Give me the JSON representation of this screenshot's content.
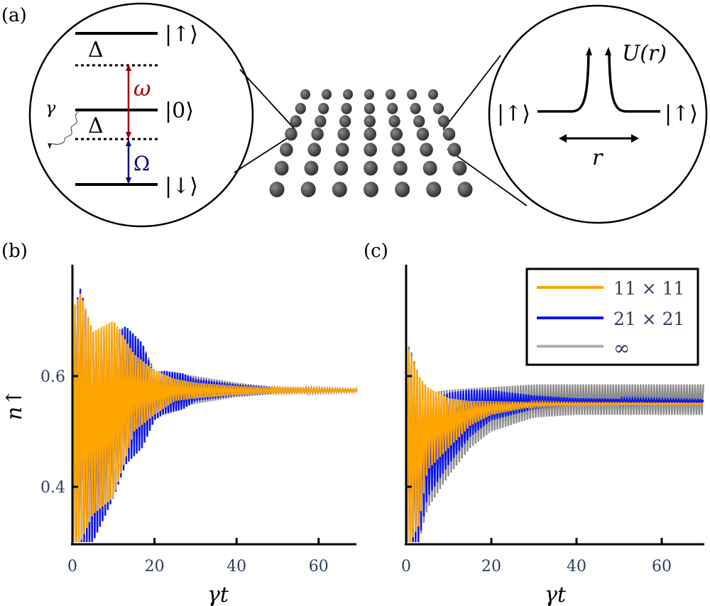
{
  "panel_labels": {
    "a": "(a)",
    "b": "(b)",
    "c": "(c)"
  },
  "diagram": {
    "left_inset": {
      "state_up": "|↑⟩",
      "state_zero": "|0⟩",
      "state_down": "|↓⟩",
      "detuning_upper": "Δ",
      "detuning_lower": "Δ",
      "omega_small": "ω",
      "omega_capital": "Ω",
      "decay": "γ",
      "colors": {
        "omega_small": "#a00000",
        "omega_capital": "#0a0a80"
      }
    },
    "lattice": {
      "rows": 7,
      "cols": 7
    },
    "right_inset": {
      "state_left": "|↑⟩",
      "state_right": "|↑⟩",
      "potential": "U(r)",
      "distance": "r"
    }
  },
  "legend": {
    "items": [
      "11 × 11",
      "21 × 21",
      "∞"
    ]
  },
  "chart_data": [
    {
      "type": "line",
      "panel": "b",
      "xlabel": "γt",
      "ylabel": "n↑",
      "xlim": [
        0,
        70
      ],
      "ylim": [
        0.3,
        0.8
      ],
      "xticks": [
        "0",
        "20",
        "40",
        "60"
      ],
      "xtick_values": [
        0,
        20,
        40,
        60
      ],
      "yticks": [
        "0.4",
        "0.6"
      ],
      "ytick_values": [
        0.4,
        0.6
      ],
      "series": [
        {
          "name": "∞",
          "color": "#8c8c8c",
          "t": [
            0,
            2,
            5,
            10,
            13,
            17,
            20,
            25,
            30,
            40,
            50,
            70
          ],
          "lower": [
            0.3,
            0.3,
            0.3,
            0.38,
            0.46,
            0.5,
            0.53,
            0.54,
            0.55,
            0.562,
            0.568,
            0.572
          ],
          "upper": [
            0.72,
            0.74,
            0.68,
            0.68,
            0.69,
            0.66,
            0.61,
            0.605,
            0.6,
            0.588,
            0.58,
            0.576
          ]
        },
        {
          "name": "21 × 21",
          "color": "#0a14f0",
          "t": [
            0,
            2,
            5,
            10,
            13,
            17,
            20,
            22,
            27,
            30,
            40,
            50,
            70
          ],
          "lower": [
            0.3,
            0.3,
            0.3,
            0.38,
            0.44,
            0.47,
            0.52,
            0.53,
            0.54,
            0.555,
            0.565,
            0.57,
            0.572
          ],
          "upper": [
            0.71,
            0.76,
            0.66,
            0.67,
            0.69,
            0.66,
            0.6,
            0.61,
            0.605,
            0.595,
            0.585,
            0.578,
            0.576
          ]
        },
        {
          "name": "11 × 11",
          "color": "#ffa500",
          "t": [
            0,
            2,
            5,
            10,
            15,
            20,
            25,
            30,
            40,
            50,
            70
          ],
          "lower": [
            0.3,
            0.3,
            0.35,
            0.38,
            0.5,
            0.53,
            0.555,
            0.56,
            0.566,
            0.57,
            0.572
          ],
          "upper": [
            0.72,
            0.75,
            0.68,
            0.7,
            0.64,
            0.61,
            0.595,
            0.588,
            0.582,
            0.578,
            0.576
          ]
        }
      ]
    },
    {
      "type": "line",
      "panel": "c",
      "xlabel": "γt",
      "ylabel": "",
      "xlim": [
        0,
        70
      ],
      "ylim": [
        0.3,
        0.8
      ],
      "xticks": [
        "0",
        "20",
        "40",
        "60"
      ],
      "xtick_values": [
        0,
        20,
        40,
        60
      ],
      "yticks": [],
      "ytick_values": [
        0.4,
        0.6
      ],
      "legend_position": "top-right",
      "series": [
        {
          "name": "∞",
          "color": "#8c8c8c",
          "t": [
            0,
            1,
            3,
            5,
            10,
            15,
            20,
            30,
            40,
            70
          ],
          "lower": [
            0.3,
            0.3,
            0.3,
            0.36,
            0.42,
            0.47,
            0.5,
            0.525,
            0.53,
            0.53
          ],
          "upper": [
            0.66,
            0.65,
            0.6,
            0.57,
            0.575,
            0.578,
            0.58,
            0.585,
            0.585,
            0.585
          ]
        },
        {
          "name": "21 × 21",
          "color": "#0a14f0",
          "t": [
            0,
            1,
            3,
            5,
            10,
            15,
            20,
            30,
            40,
            70
          ],
          "lower": [
            0.3,
            0.3,
            0.3,
            0.38,
            0.44,
            0.49,
            0.52,
            0.54,
            0.548,
            0.552
          ],
          "upper": [
            0.63,
            0.62,
            0.58,
            0.55,
            0.57,
            0.575,
            0.575,
            0.565,
            0.56,
            0.557
          ]
        },
        {
          "name": "11 × 11",
          "color": "#ffa500",
          "t": [
            0,
            1,
            3,
            5,
            10,
            15,
            20,
            30,
            40,
            70
          ],
          "lower": [
            0.3,
            0.3,
            0.33,
            0.43,
            0.47,
            0.51,
            0.53,
            0.545,
            0.548,
            0.549
          ],
          "upper": [
            0.66,
            0.64,
            0.6,
            0.58,
            0.56,
            0.555,
            0.555,
            0.553,
            0.552,
            0.551
          ]
        }
      ]
    }
  ]
}
